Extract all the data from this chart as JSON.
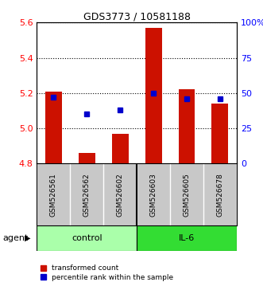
{
  "title": "GDS3773 / 10581188",
  "samples": [
    "GSM526561",
    "GSM526562",
    "GSM526602",
    "GSM526603",
    "GSM526605",
    "GSM526678"
  ],
  "red_values": [
    5.21,
    4.86,
    4.97,
    5.57,
    5.22,
    5.14
  ],
  "blue_percentiles": [
    47,
    35,
    38,
    50,
    46,
    46
  ],
  "y_min": 4.8,
  "y_max": 5.6,
  "y_ticks": [
    4.8,
    5.0,
    5.2,
    5.4,
    5.6
  ],
  "right_y_ticks": [
    0,
    25,
    50,
    75,
    100
  ],
  "right_y_labels": [
    "0",
    "25",
    "50",
    "75",
    "100%"
  ],
  "ctrl_color": "#AAFFAA",
  "il6_color": "#33DD33",
  "bar_color": "#CC1100",
  "dot_color": "#0000CC",
  "background_samples": "#C8C8C8",
  "bar_width": 0.5,
  "legend_items": [
    {
      "color": "#CC1100",
      "label": "transformed count"
    },
    {
      "color": "#0000CC",
      "label": "percentile rank within the sample"
    }
  ]
}
